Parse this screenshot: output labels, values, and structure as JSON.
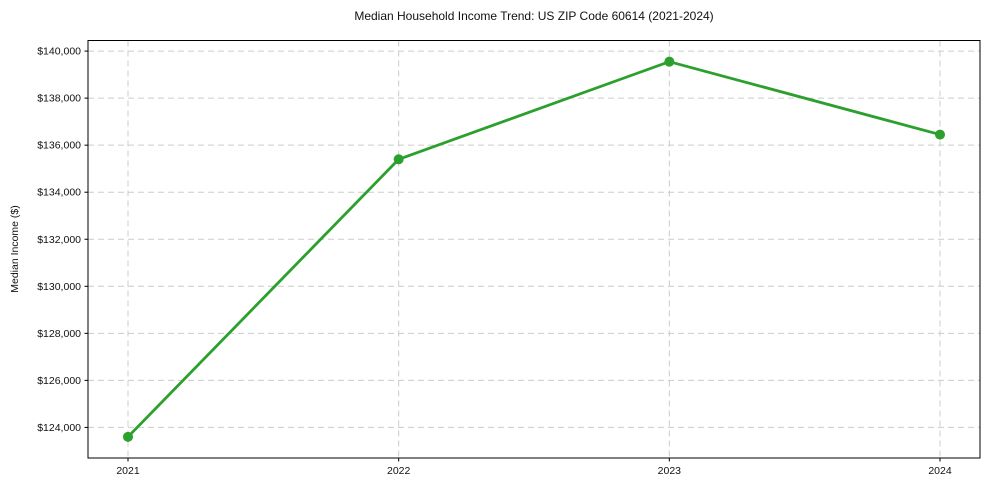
{
  "chart_data": {
    "type": "line",
    "title": "Median Household Income Trend: US ZIP Code 60614 (2021-2024)",
    "xlabel": "",
    "ylabel": "Median Income ($)",
    "categories": [
      "2021",
      "2022",
      "2023",
      "2024"
    ],
    "values": [
      123600,
      135400,
      139550,
      136450
    ],
    "ylim": [
      122700,
      140450
    ],
    "y_ticks": [
      124000,
      126000,
      128000,
      130000,
      132000,
      134000,
      136000,
      138000,
      140000
    ],
    "y_tick_labels": [
      "$124,000",
      "$126,000",
      "$128,000",
      "$130,000",
      "$132,000",
      "$134,000",
      "$136,000",
      "$138,000",
      "$140,000"
    ],
    "grid": true,
    "grid_style": "dashed",
    "legend": "none",
    "line_color": "#2ca02c",
    "marker": "circle"
  }
}
